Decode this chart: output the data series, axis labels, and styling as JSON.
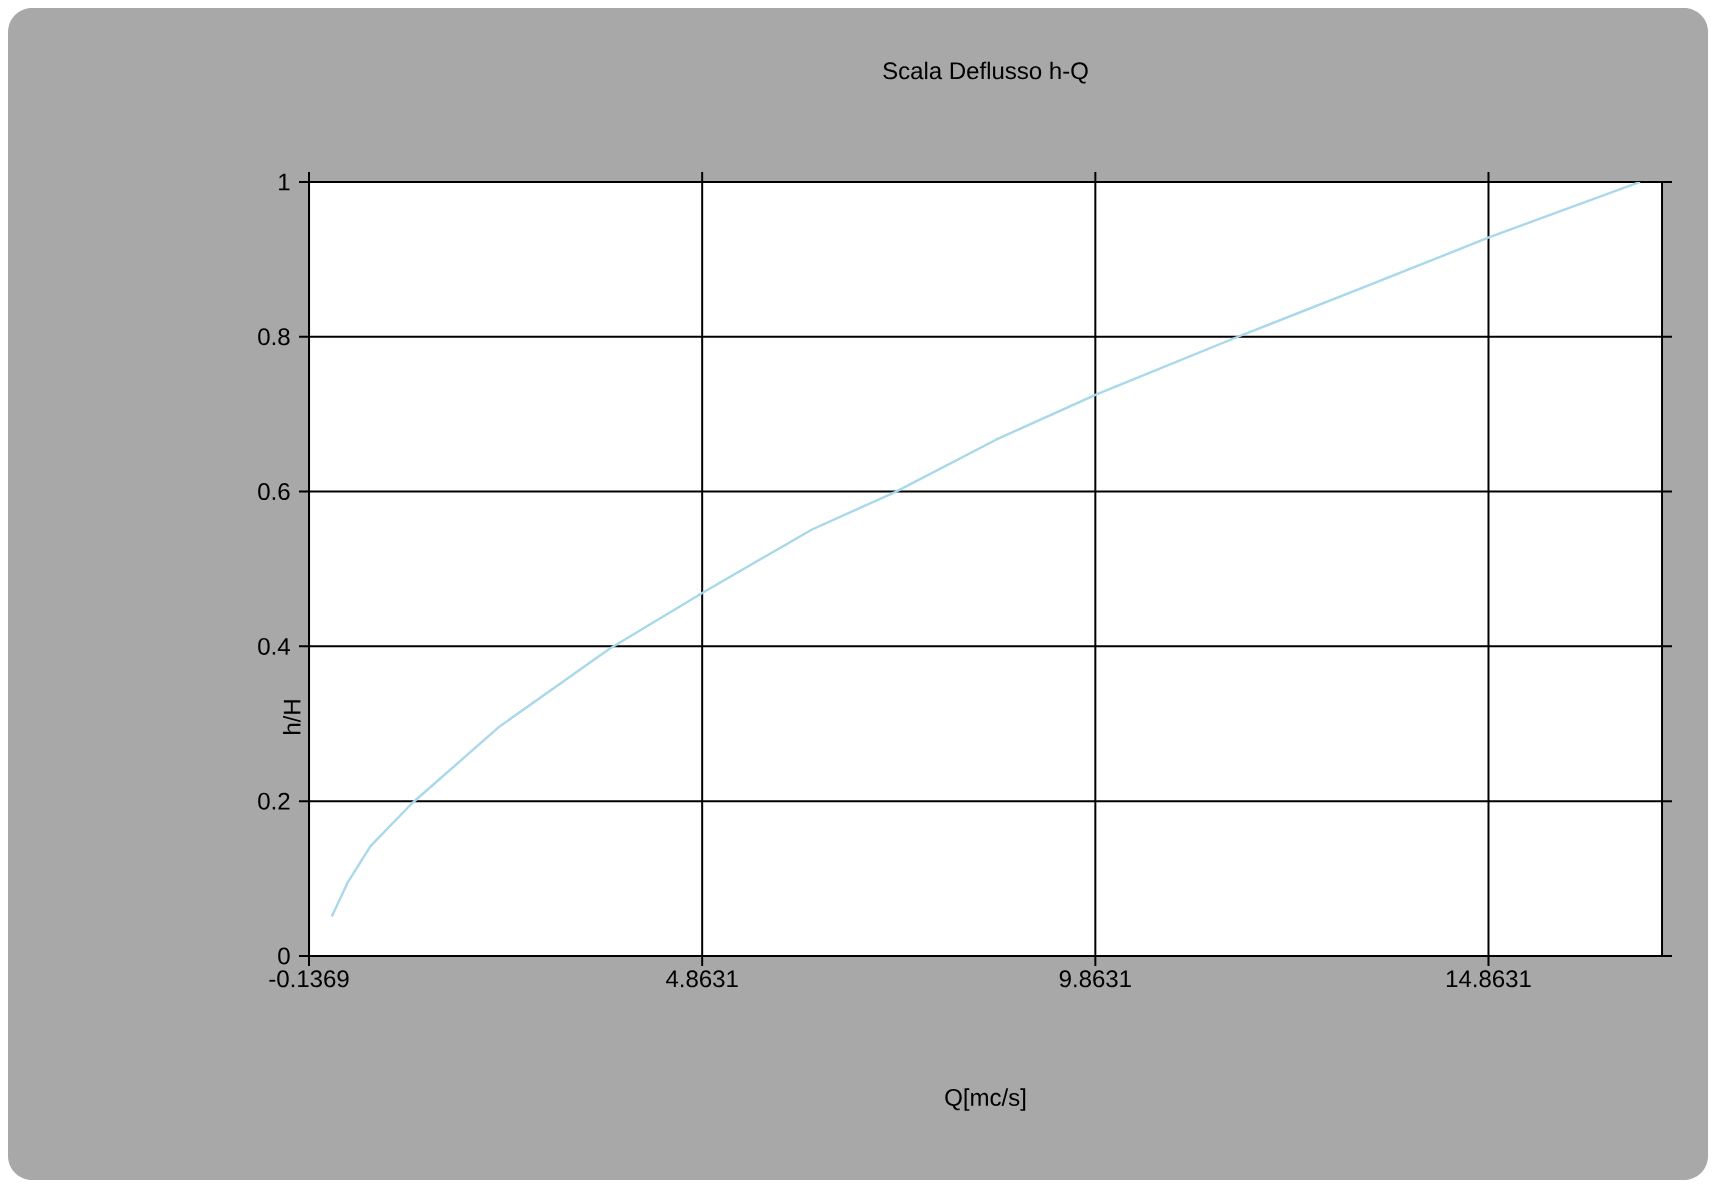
{
  "chart_data": {
    "type": "line",
    "title": "Scala Deflusso h-Q",
    "xlabel": "Q[mc/s]",
    "ylabel": "h/H",
    "xlim": [
      -0.1369,
      17.07
    ],
    "xticks": [
      -0.1369,
      4.8631,
      9.8631,
      14.8631
    ],
    "ylim": [
      0,
      1
    ],
    "yticks": [
      0,
      0.2,
      0.4,
      0.6,
      0.8,
      1
    ],
    "grid": true,
    "series": [
      {
        "color": "#a8d8ea",
        "x": [
          0.153,
          0.35,
          0.645,
          1.17,
          2.28,
          3.685,
          4.88,
          6.26,
          7.31,
          8.6,
          9.886,
          11.7,
          13.28,
          14.86,
          16.79
        ],
        "values": [
          0.051,
          0.094,
          0.142,
          0.197,
          0.296,
          0.397,
          0.47,
          0.551,
          0.599,
          0.667,
          0.726,
          0.801,
          0.864,
          0.928,
          1.0
        ]
      }
    ]
  }
}
